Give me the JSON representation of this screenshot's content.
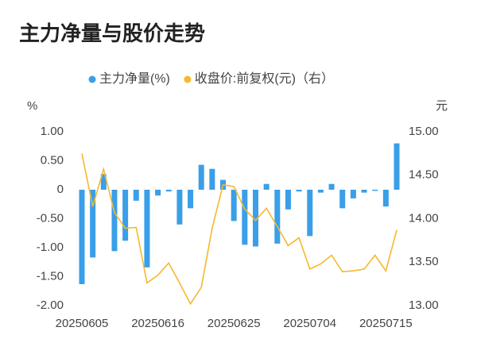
{
  "chart_data": {
    "type": "bar-line",
    "title": "主力净量与股价走势",
    "y_unit": "%",
    "y2_unit": "元",
    "categories": [
      "20250605",
      null,
      null,
      null,
      null,
      null,
      null,
      "20250616",
      null,
      null,
      null,
      null,
      null,
      null,
      "20250625",
      null,
      null,
      null,
      null,
      null,
      null,
      "20250704",
      null,
      null,
      null,
      null,
      null,
      null,
      "20250715",
      null
    ],
    "series": [
      {
        "name": "主力净量(%)",
        "color": "#3a9fe8",
        "kind": "bar",
        "values": [
          -1.63,
          -1.17,
          0.27,
          -1.06,
          -0.88,
          -0.19,
          -1.34,
          -0.1,
          -0.03,
          -0.6,
          -0.32,
          0.43,
          0.36,
          0.17,
          -0.54,
          -0.95,
          -0.98,
          0.1,
          -0.93,
          -0.34,
          -0.03,
          -0.8,
          -0.05,
          0.1,
          -0.32,
          -0.15,
          -0.05,
          -0.02,
          -0.29,
          0.8
        ]
      },
      {
        "name": "收盘价:前复权(元)（右）",
        "color": "#f5b82e",
        "kind": "line",
        "axis": "y2",
        "values": [
          14.75,
          14.14,
          14.57,
          14.07,
          13.89,
          13.9,
          13.26,
          13.35,
          13.49,
          13.26,
          13.02,
          13.21,
          13.89,
          14.39,
          14.37,
          14.11,
          13.98,
          14.12,
          13.91,
          13.69,
          13.78,
          13.42,
          13.48,
          13.58,
          13.39,
          13.4,
          13.42,
          13.58,
          13.4,
          13.87
        ]
      }
    ],
    "ylim": [
      -2,
      1
    ],
    "yticks": [
      {
        "value": 1,
        "label": "1.00"
      },
      {
        "value": 0.5,
        "label": "0.50"
      },
      {
        "value": 0,
        "label": "0"
      },
      {
        "value": -0.5,
        "label": "-0.50"
      },
      {
        "value": -1,
        "label": "-1.00"
      },
      {
        "value": -1.5,
        "label": "-1.50"
      },
      {
        "value": -2,
        "label": "-2.00"
      }
    ],
    "y2lim": [
      13,
      15
    ],
    "y2ticks": [
      {
        "value": 15,
        "label": "15.00"
      },
      {
        "value": 14.5,
        "label": "14.50"
      },
      {
        "value": 14,
        "label": "14.00"
      },
      {
        "value": 13.5,
        "label": "13.50"
      },
      {
        "value": 13,
        "label": "13.00"
      }
    ]
  }
}
